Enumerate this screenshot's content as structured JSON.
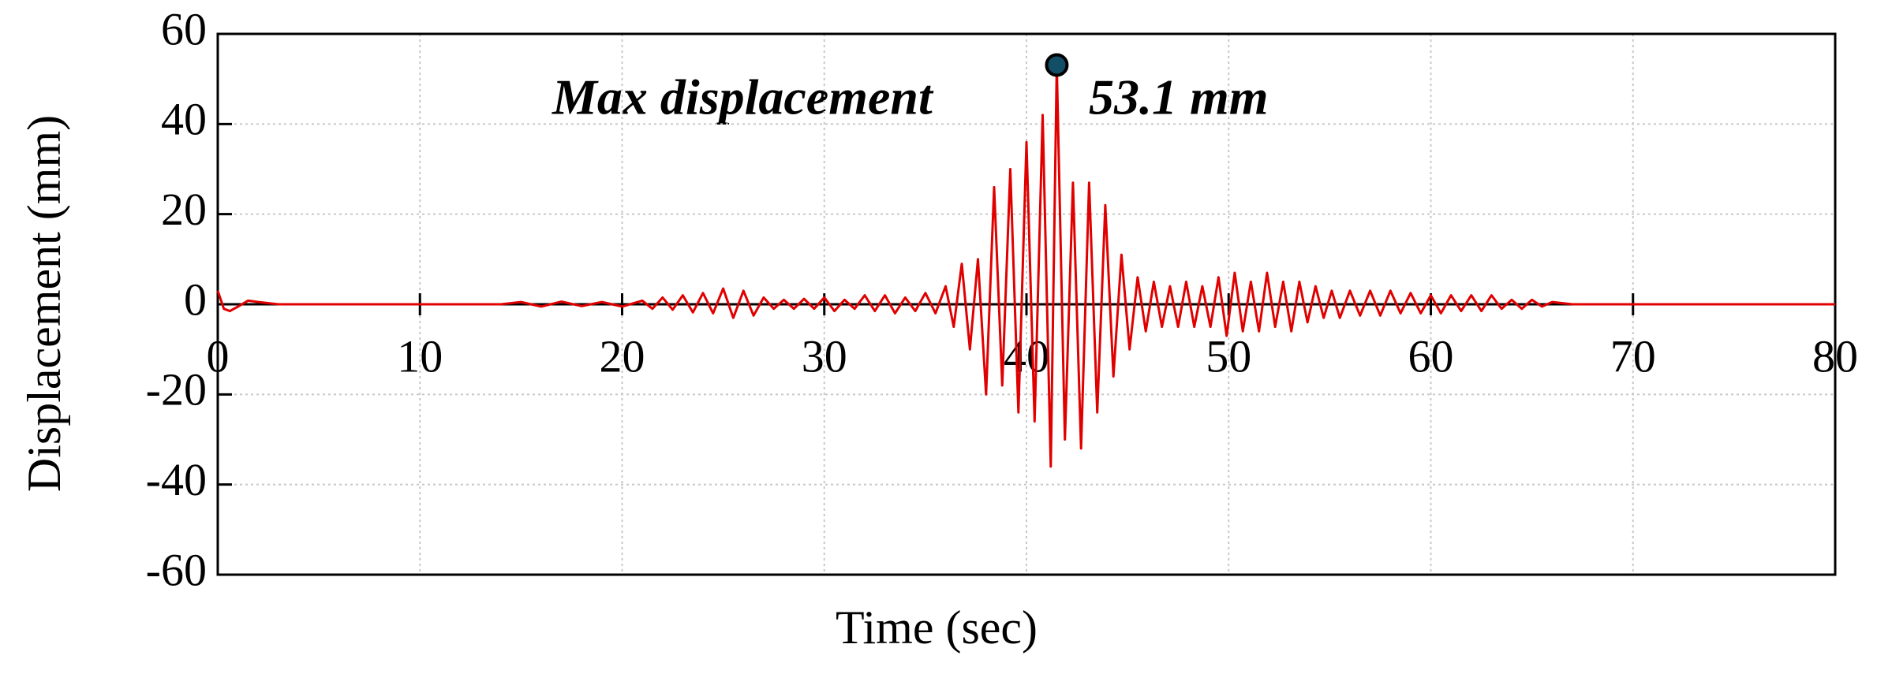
{
  "chart_data": {
    "type": "line",
    "xlabel": "Time (sec)",
    "ylabel": "Displacement  (mm)",
    "annotation": "Max displacement",
    "max_marker": {
      "x": 41.5,
      "y": 53.1,
      "label": "53.1 mm"
    },
    "xlim": [
      0,
      80
    ],
    "xticks": [
      0,
      10,
      20,
      30,
      40,
      50,
      60,
      70,
      80
    ],
    "ylim": [
      -60,
      60
    ],
    "yticks": [
      -60,
      -40,
      -20,
      0,
      20,
      40,
      60
    ],
    "grid": true,
    "x": [
      0,
      0.3,
      0.6,
      1,
      1.5,
      2,
      3,
      5,
      10,
      14,
      15,
      16,
      17,
      18,
      19,
      20,
      21,
      21.5,
      22,
      22.5,
      23,
      23.5,
      24,
      24.5,
      25,
      25.5,
      26,
      26.5,
      27,
      27.5,
      28,
      28.5,
      29,
      29.5,
      30,
      30.5,
      31,
      31.5,
      32,
      32.5,
      33,
      33.5,
      34,
      34.5,
      35,
      35.5,
      36,
      36.4,
      36.8,
      37.2,
      37.6,
      38,
      38.4,
      38.8,
      39.2,
      39.6,
      40,
      40.4,
      40.8,
      41.2,
      41.5,
      41.9,
      42.3,
      42.7,
      43.1,
      43.5,
      43.9,
      44.3,
      44.7,
      45.1,
      45.5,
      45.9,
      46.3,
      46.7,
      47.1,
      47.5,
      47.9,
      48.3,
      48.7,
      49.1,
      49.5,
      49.9,
      50.3,
      50.7,
      51.1,
      51.5,
      51.9,
      52.3,
      52.7,
      53.1,
      53.5,
      53.9,
      54.3,
      54.7,
      55.1,
      55.5,
      56,
      56.5,
      57,
      57.5,
      58,
      58.5,
      59,
      59.5,
      60,
      60.5,
      61,
      61.5,
      62,
      62.5,
      63,
      63.5,
      64,
      64.5,
      65,
      65.5,
      66,
      67,
      80
    ],
    "series": [
      {
        "name": "Displacement",
        "color": "#e00000",
        "values": [
          3,
          -1,
          -1.5,
          -0.5,
          0.8,
          0.5,
          0,
          0,
          0,
          0,
          0.5,
          -0.5,
          0.6,
          -0.4,
          0.5,
          -0.5,
          0.8,
          -1,
          1.5,
          -1.2,
          2,
          -1.8,
          2.5,
          -2,
          3.5,
          -3,
          3,
          -2.5,
          1.5,
          -1,
          1,
          -1,
          1.2,
          -1,
          1.5,
          -1.5,
          1,
          -1,
          2,
          -1.5,
          2,
          -2,
          1.5,
          -1.5,
          2.5,
          -2,
          4,
          -5,
          9,
          -10,
          10,
          -20,
          26,
          -18,
          30,
          -24,
          36,
          -26,
          42,
          -36,
          53.1,
          -30,
          27,
          -32,
          27,
          -24,
          22,
          -16,
          11,
          -10,
          6,
          -6,
          5,
          -5,
          4,
          -5,
          5,
          -5,
          4,
          -5,
          6,
          -7,
          7,
          -6,
          5,
          -6,
          7,
          -5,
          5,
          -6,
          5,
          -4,
          4,
          -3,
          3,
          -3,
          3,
          -2.5,
          3,
          -2.5,
          3,
          -2,
          2.5,
          -2,
          2,
          -2,
          2,
          -1.5,
          2,
          -1.5,
          2,
          -1,
          1,
          -1,
          1,
          -0.5,
          0.5,
          0,
          0
        ]
      }
    ]
  }
}
